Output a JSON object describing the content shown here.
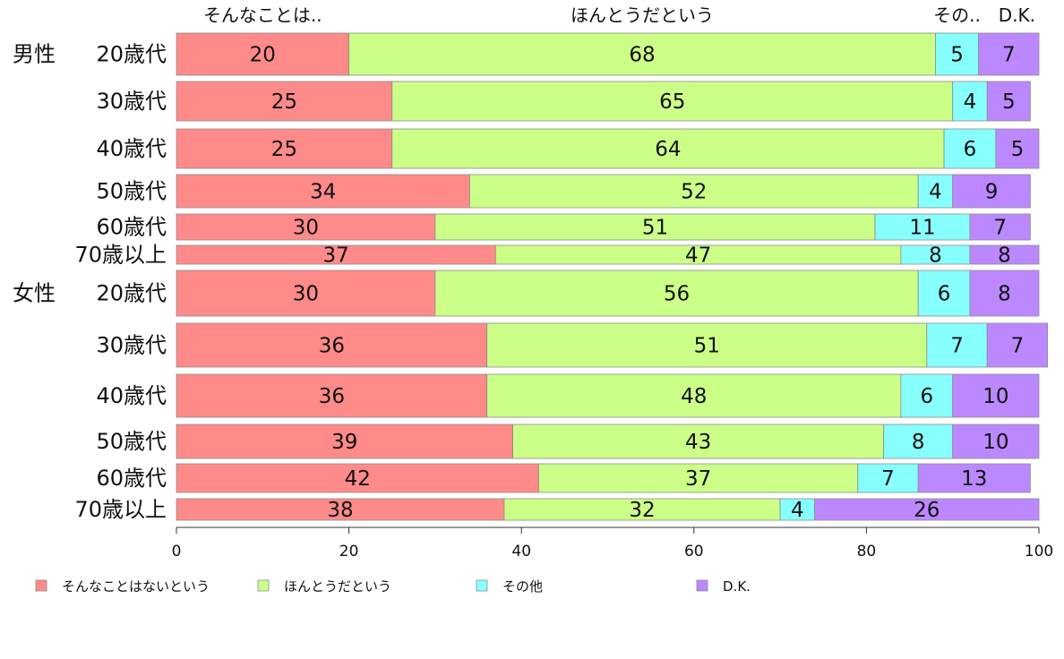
{
  "chart_data": {
    "type": "bar",
    "orientation": "horizontal",
    "stacked": "percent",
    "groups": [
      {
        "label": "男性",
        "rows": [
          {
            "label": "20歳代",
            "values": [
              20,
              68,
              5,
              7
            ]
          },
          {
            "label": "30歳代",
            "values": [
              25,
              65,
              4,
              5
            ]
          },
          {
            "label": "40歳代",
            "values": [
              25,
              64,
              6,
              5
            ]
          },
          {
            "label": "50歳代",
            "values": [
              34,
              52,
              4,
              9
            ]
          },
          {
            "label": "60歳代",
            "values": [
              30,
              51,
              11,
              7
            ]
          },
          {
            "label": "70歳以上",
            "values": [
              37,
              47,
              8,
              8
            ]
          }
        ]
      },
      {
        "label": "女性",
        "rows": [
          {
            "label": "20歳代",
            "values": [
              30,
              56,
              6,
              8
            ]
          },
          {
            "label": "30歳代",
            "values": [
              36,
              51,
              7,
              7
            ]
          },
          {
            "label": "40歳代",
            "values": [
              36,
              48,
              6,
              10
            ]
          },
          {
            "label": "50歳代",
            "values": [
              39,
              43,
              8,
              10
            ]
          },
          {
            "label": "60歳代",
            "values": [
              42,
              37,
              7,
              13
            ]
          },
          {
            "label": "70歳以上",
            "values": [
              38,
              32,
              4,
              26
            ]
          }
        ]
      }
    ],
    "series": [
      {
        "name": "そんなことはないという",
        "short_label": "そんなことは..",
        "color": "#ff8a8a"
      },
      {
        "name": "ほんとうだという",
        "short_label": "ほんとうだという",
        "color": "#ccff88"
      },
      {
        "name": "その他",
        "short_label": "その..",
        "color": "#88ffff"
      },
      {
        "name": "D.K.",
        "short_label": "D.K.",
        "color": "#bb88ff"
      }
    ],
    "xlim": [
      0,
      100
    ],
    "xticks": [
      0,
      20,
      40,
      60,
      80,
      100
    ],
    "legend_position": "bottom"
  }
}
